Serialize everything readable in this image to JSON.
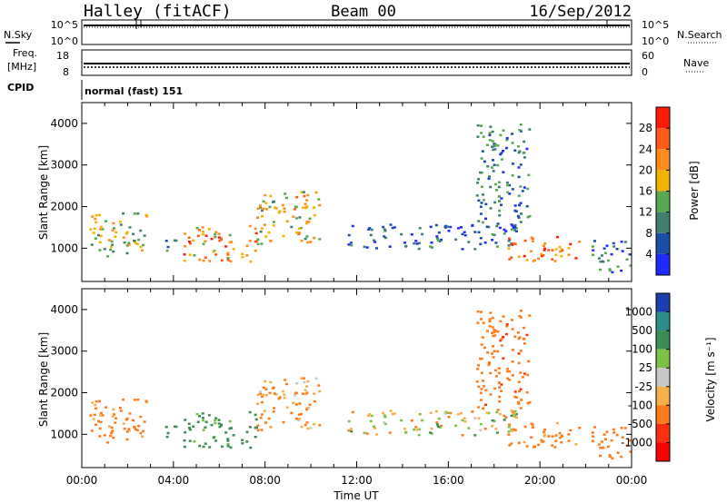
{
  "header": {
    "station": "Halley (fitACF)",
    "beam": "Beam 00",
    "date": "16/Sep/2012"
  },
  "top_panel": {
    "left_label": "N.Sky",
    "right_label": "N.Search",
    "left_ticks": [
      "10^5",
      "10^0"
    ],
    "right_ticks": [
      "10^5",
      "10^0"
    ]
  },
  "freq_panel": {
    "left_label_1": "Freq.",
    "left_label_2": "[MHz]",
    "right_label": "Nave",
    "left_ticks": [
      "18",
      "8"
    ],
    "right_ticks": [
      "60",
      "0"
    ]
  },
  "cpid": {
    "label": "CPID",
    "value": "normal (fast) 151"
  },
  "colors": {
    "power_scale": [
      "#1e2bff",
      "#1a4fa8",
      "#3f7f6e",
      "#57a84e",
      "#f2b400",
      "#ff8c1a",
      "#ff5a1a",
      "#ff1a0a"
    ],
    "velocity_scale": [
      "#1b3fae",
      "#2e8c8c",
      "#3c8c55",
      "#79c245",
      "#c7c7c7",
      "#f7b047",
      "#ff7a1a",
      "#ff3010",
      "#ff0000"
    ]
  },
  "chart_data": [
    {
      "type": "heatmap",
      "title": "Power",
      "ylabel": "Slant Range [km]",
      "xlabel": "",
      "x_ticks": [
        "00:00",
        "04:00",
        "08:00",
        "12:00",
        "16:00",
        "20:00",
        "00:00"
      ],
      "y_ticks": [
        "1000",
        "2000",
        "3000",
        "4000"
      ],
      "ylim": [
        200,
        4500
      ],
      "colorbar": {
        "label": "Power [dB]",
        "ticks": [
          "4",
          "8",
          "12",
          "16",
          "20",
          "24",
          "28"
        ],
        "range": [
          0,
          30
        ]
      },
      "echo_regions": [
        {
          "t_start": 0.3,
          "t_end": 2.8,
          "range_low": 800,
          "range_high": 1900,
          "power_db": 14
        },
        {
          "t_start": 3.6,
          "t_end": 4.2,
          "range_low": 900,
          "range_high": 1300,
          "power_db": 10
        },
        {
          "t_start": 4.4,
          "t_end": 7.6,
          "range_low": 700,
          "range_high": 1600,
          "power_db": 20
        },
        {
          "t_start": 7.6,
          "t_end": 10.4,
          "range_low": 1100,
          "range_high": 2400,
          "power_db": 16
        },
        {
          "t_start": 11.5,
          "t_end": 19.0,
          "range_low": 1000,
          "range_high": 1600,
          "power_db": 6
        },
        {
          "t_start": 17.2,
          "t_end": 19.5,
          "range_low": 1600,
          "range_high": 4000,
          "power_db": 8
        },
        {
          "t_start": 18.5,
          "t_end": 21.8,
          "range_low": 700,
          "range_high": 1300,
          "power_db": 22
        },
        {
          "t_start": 22.2,
          "t_end": 23.9,
          "range_low": 400,
          "range_high": 1200,
          "power_db": 8
        }
      ]
    },
    {
      "type": "heatmap",
      "title": "Velocity",
      "ylabel": "Slant Range [km]",
      "xlabel": "Time UT",
      "x_ticks": [
        "00:00",
        "04:00",
        "08:00",
        "12:00",
        "16:00",
        "20:00",
        "00:00"
      ],
      "y_ticks": [
        "1000",
        "2000",
        "3000",
        "4000"
      ],
      "ylim": [
        200,
        4500
      ],
      "colorbar": {
        "label": "Velocity [m s⁻¹]",
        "ticks": [
          "1000",
          "500",
          "100",
          "25",
          "-25",
          "-100",
          "-500",
          "-1000"
        ]
      },
      "echo_regions": [
        {
          "t_start": 0.3,
          "t_end": 2.8,
          "range_low": 800,
          "range_high": 1900,
          "velocity": -200
        },
        {
          "t_start": 3.6,
          "t_end": 4.2,
          "range_low": 900,
          "range_high": 1300,
          "velocity": 300
        },
        {
          "t_start": 4.4,
          "t_end": 7.6,
          "range_low": 700,
          "range_high": 1600,
          "velocity": 200
        },
        {
          "t_start": 7.6,
          "t_end": 10.4,
          "range_low": 1100,
          "range_high": 2400,
          "velocity": -150
        },
        {
          "t_start": 11.5,
          "t_end": 19.0,
          "range_low": 1000,
          "range_high": 1600,
          "velocity": 0
        },
        {
          "t_start": 17.2,
          "t_end": 19.5,
          "range_low": 1600,
          "range_high": 4000,
          "velocity": -400
        },
        {
          "t_start": 18.5,
          "t_end": 21.8,
          "range_low": 700,
          "range_high": 1300,
          "velocity": -200
        },
        {
          "t_start": 22.2,
          "t_end": 23.9,
          "range_low": 400,
          "range_high": 1200,
          "velocity": -300
        }
      ]
    }
  ]
}
